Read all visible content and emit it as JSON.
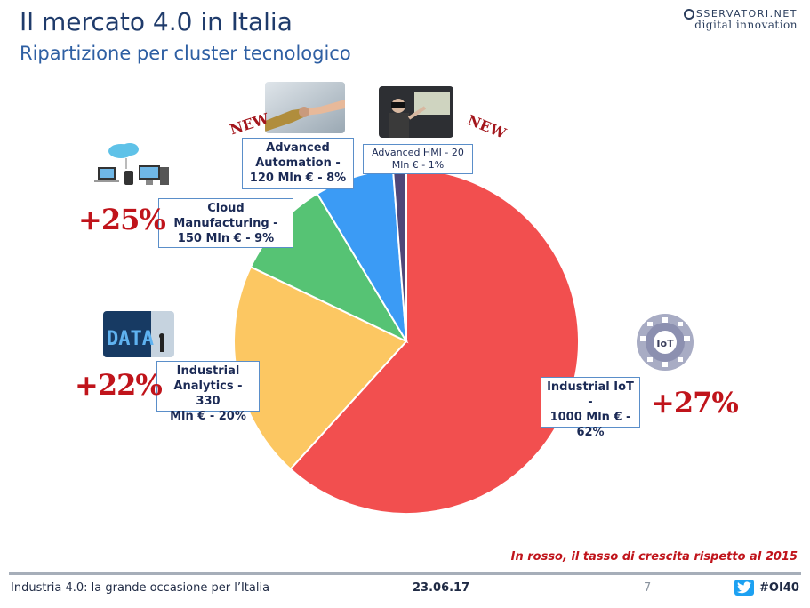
{
  "header": {
    "title": "Il mercato 4.0 in Italia",
    "subtitle": "Ripartizione per cluster tecnologico"
  },
  "logo": {
    "line1": "SSERVATORI.NET",
    "line2": "digital innovation"
  },
  "chart_data": {
    "type": "pie",
    "title": "Il mercato 4.0 in Italia",
    "subtitle": "Ripartizione per cluster tecnologico",
    "slices": [
      {
        "name": "Industrial IoT",
        "value": 1000,
        "percent": 62,
        "color": "#f24f4f",
        "growth": "+27%"
      },
      {
        "name": "Industrial Analytics",
        "value": 330,
        "percent": 20,
        "color": "#fcc762",
        "growth": "+22%"
      },
      {
        "name": "Cloud Manufacturing",
        "value": 150,
        "percent": 9,
        "color": "#56c374",
        "growth": "+25%"
      },
      {
        "name": "Advanced Automation",
        "value": 120,
        "percent": 8,
        "color": "#3b9bf5",
        "growth": ""
      },
      {
        "name": "Advanced HMI",
        "value": 20,
        "percent": 1,
        "color": "#4f4778",
        "growth": ""
      }
    ],
    "unit": "Mln €"
  },
  "labels": {
    "iot": [
      "Industrial IoT -",
      "1000 Mln € -",
      "62%"
    ],
    "analytics": [
      "Industrial",
      "Analytics - 330",
      "Mln € - 20%"
    ],
    "cloud": [
      "Cloud",
      "Manufacturing -",
      "150 Mln € - 9%"
    ],
    "automation": [
      "Advanced",
      "Automation -",
      "120 Mln € - 8%"
    ],
    "hmi": [
      "Advanced HMI - 20",
      "Mln € - 1%"
    ]
  },
  "growth": {
    "iot": "+27%",
    "analytics": "+22%",
    "cloud": "+25%"
  },
  "badges": {
    "new_label": "NEW"
  },
  "pictures": {
    "data_text": "DATA",
    "iot_text": "IoT"
  },
  "note": "In rosso, il tasso di crescita rispetto al 2015",
  "footer": {
    "left": "Industria 4.0: la grande occasione per l’Italia",
    "date": "23.06.17",
    "page": "7",
    "hashtag": "#OI40"
  }
}
